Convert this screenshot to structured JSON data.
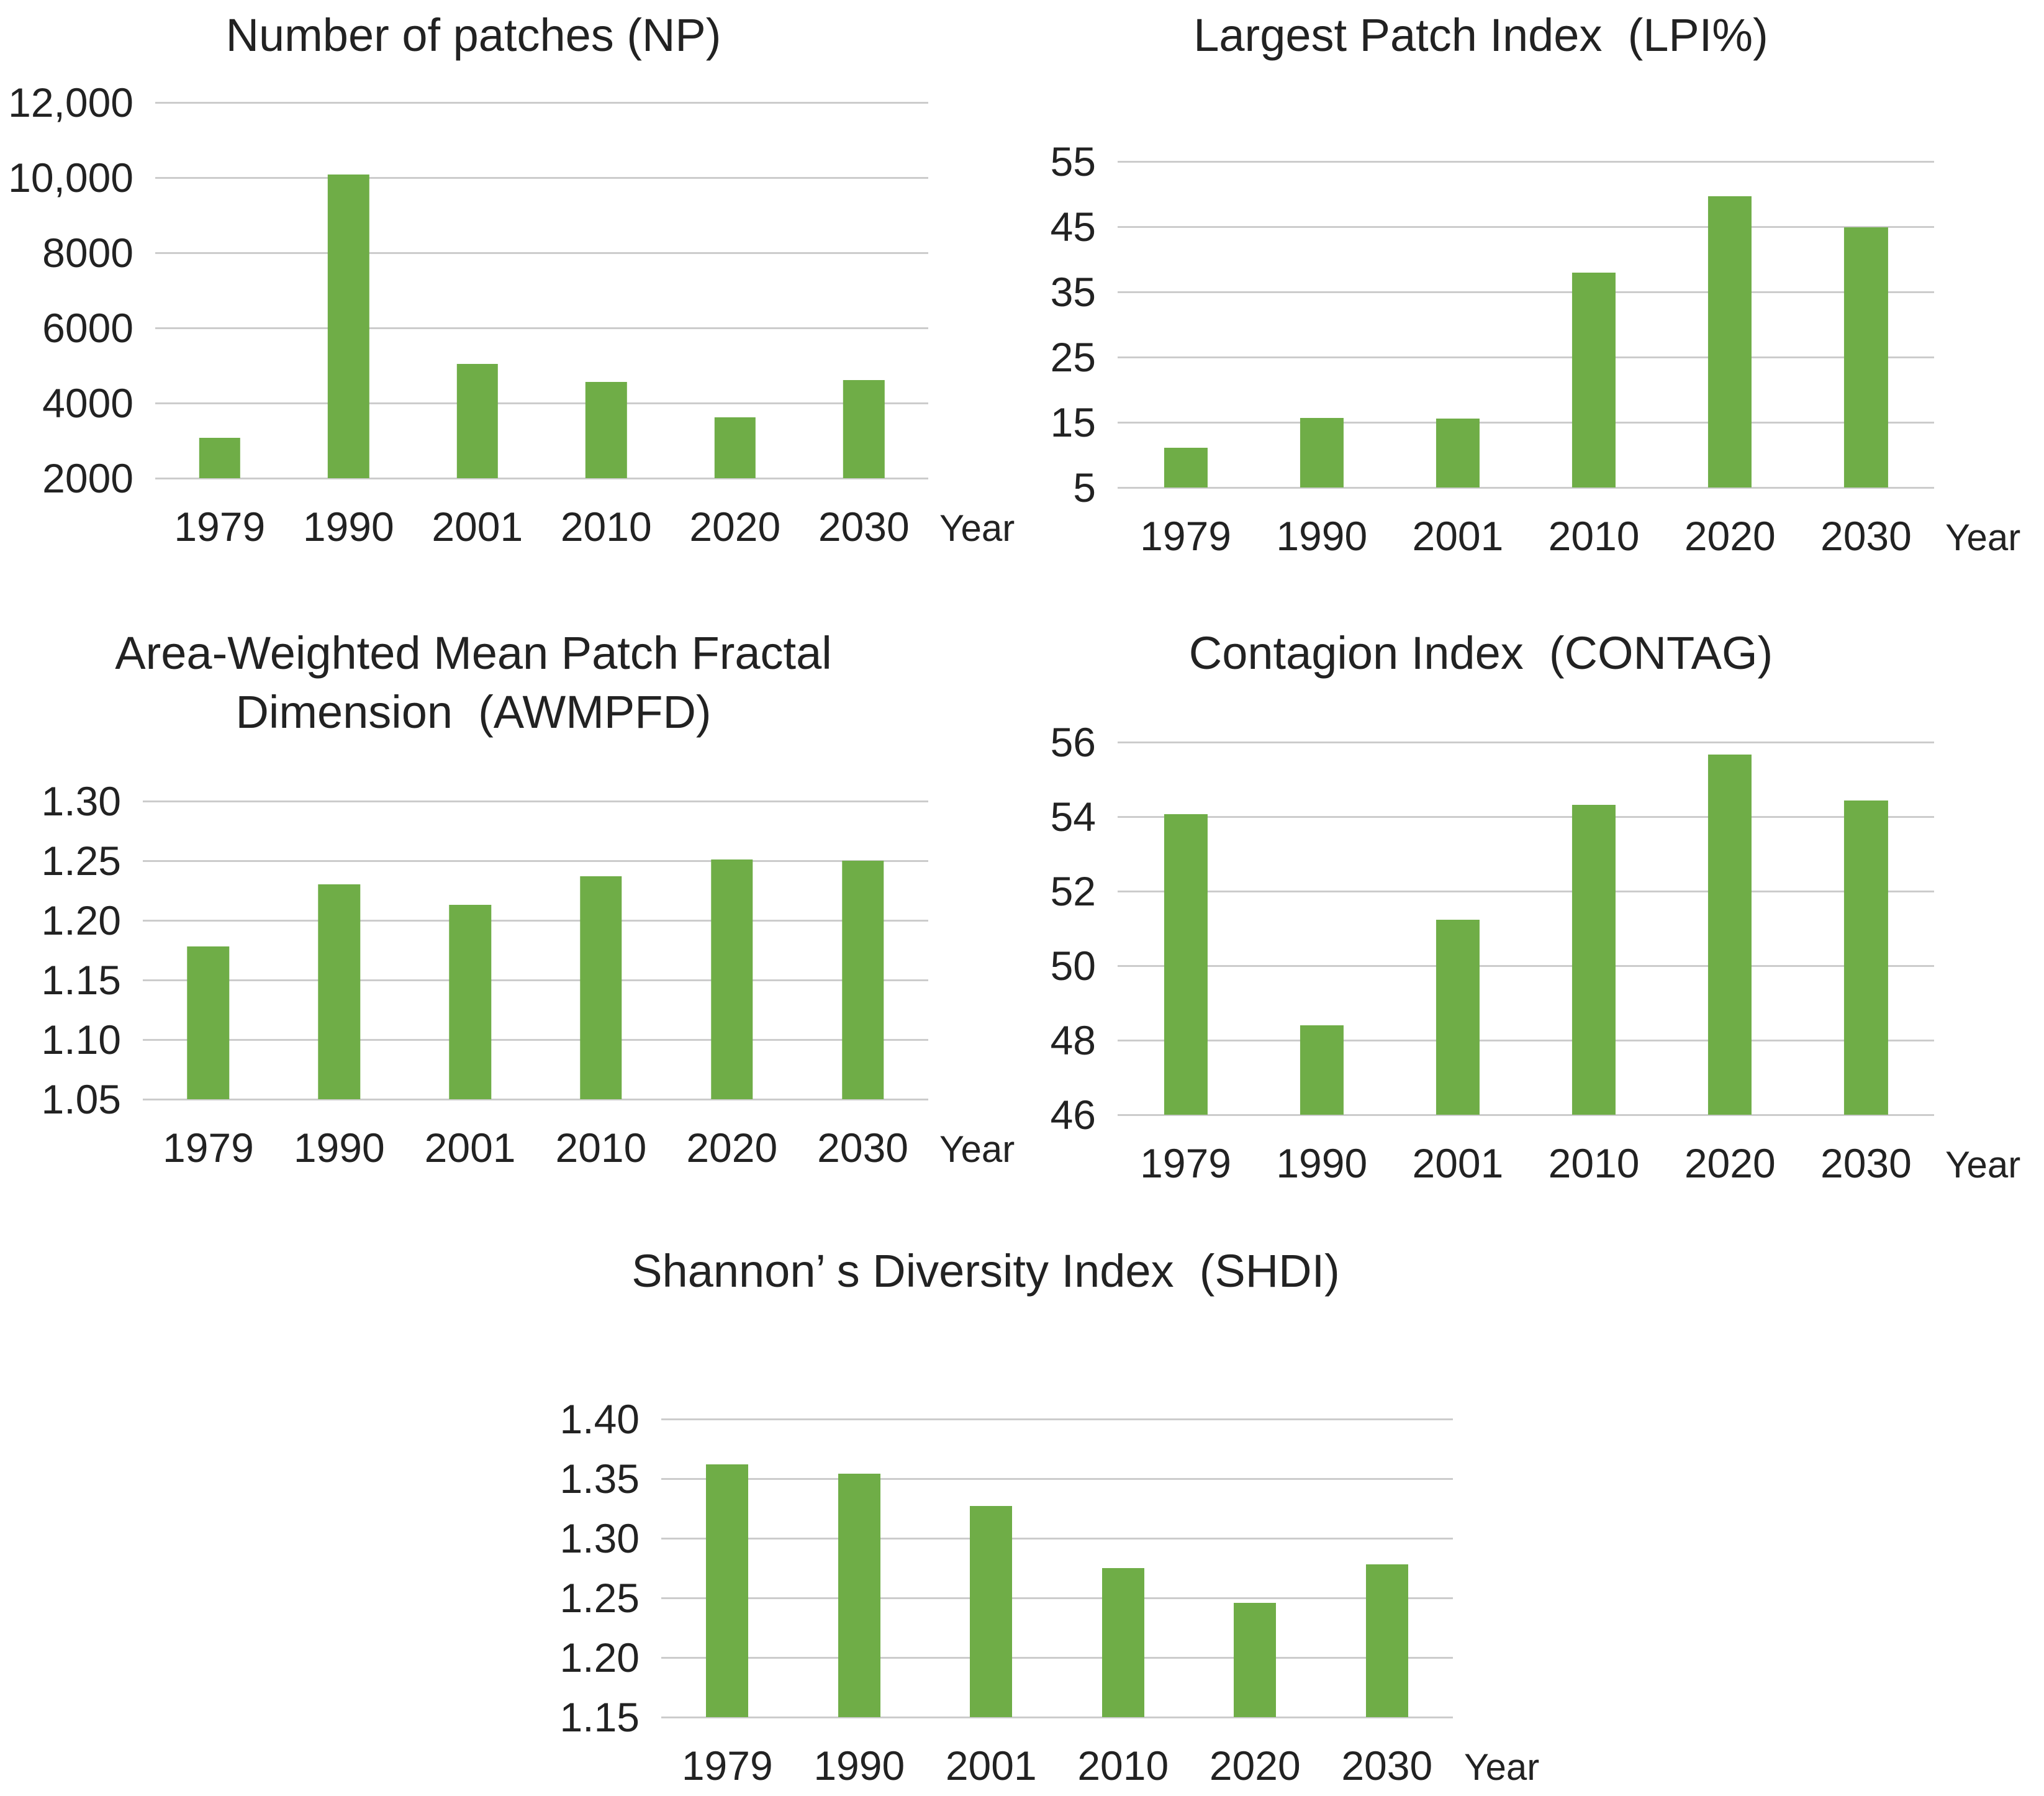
{
  "colors": {
    "bar": "#6fad47",
    "gridline": "#cccccc",
    "text": "#222222",
    "background": "#ffffff"
  },
  "chart_data": [
    {
      "id": "np",
      "type": "bar",
      "title": "Number of patches (NP)",
      "categories": [
        "1979",
        "1990",
        "2001",
        "2010",
        "2020",
        "2030"
      ],
      "values": [
        3070,
        10090,
        5040,
        4570,
        3620,
        4620
      ],
      "xlabel": "Year",
      "ylabel": "",
      "ylim": [
        2000,
        12000
      ],
      "yticks": [
        "2000",
        "4000",
        "6000",
        "8000",
        "10,000",
        "12,000"
      ],
      "grid": true,
      "legend": "none"
    },
    {
      "id": "lpi",
      "type": "bar",
      "title": "Largest Patch Index  (LPI%)",
      "categories": [
        "1979",
        "1990",
        "2001",
        "2010",
        "2020",
        "2030"
      ],
      "values": [
        11.1,
        15.7,
        15.6,
        38.0,
        49.7,
        44.9
      ],
      "xlabel": "Year",
      "ylabel": "",
      "ylim": [
        5,
        55
      ],
      "yticks": [
        "5",
        "15",
        "25",
        "35",
        "45",
        "55"
      ],
      "grid": true,
      "legend": "none"
    },
    {
      "id": "awmpfd",
      "type": "bar",
      "title": "Area-Weighted Mean Patch Fractal\nDimension  (AWMPFD)",
      "categories": [
        "1979",
        "1990",
        "2001",
        "2010",
        "2020",
        "2030"
      ],
      "values": [
        1.178,
        1.23,
        1.213,
        1.237,
        1.251,
        1.25
      ],
      "xlabel": "Year",
      "ylabel": "",
      "ylim": [
        1.05,
        1.3
      ],
      "yticks": [
        "1.05",
        "1.10",
        "1.15",
        "1.20",
        "1.25",
        "1.30"
      ],
      "grid": true,
      "legend": "none"
    },
    {
      "id": "contag",
      "type": "bar",
      "title": "Contagion Index  (CONTAG)",
      "categories": [
        "1979",
        "1990",
        "2001",
        "2010",
        "2020",
        "2030"
      ],
      "values": [
        54.07,
        48.4,
        51.23,
        54.31,
        55.67,
        54.44
      ],
      "xlabel": "Year",
      "ylabel": "",
      "ylim": [
        46,
        56
      ],
      "yticks": [
        "46",
        "48",
        "50",
        "52",
        "54",
        "56"
      ],
      "grid": true,
      "legend": "none"
    },
    {
      "id": "shdi",
      "type": "bar",
      "title": "Shannon’ s Diversity Index  (SHDI)",
      "categories": [
        "1979",
        "1990",
        "2001",
        "2010",
        "2020",
        "2030"
      ],
      "values": [
        1.362,
        1.354,
        1.327,
        1.275,
        1.246,
        1.278
      ],
      "xlabel": "Year",
      "ylabel": "",
      "ylim": [
        1.15,
        1.4
      ],
      "yticks": [
        "1.15",
        "1.20",
        "1.25",
        "1.30",
        "1.35",
        "1.40"
      ],
      "grid": true,
      "legend": "none"
    }
  ]
}
